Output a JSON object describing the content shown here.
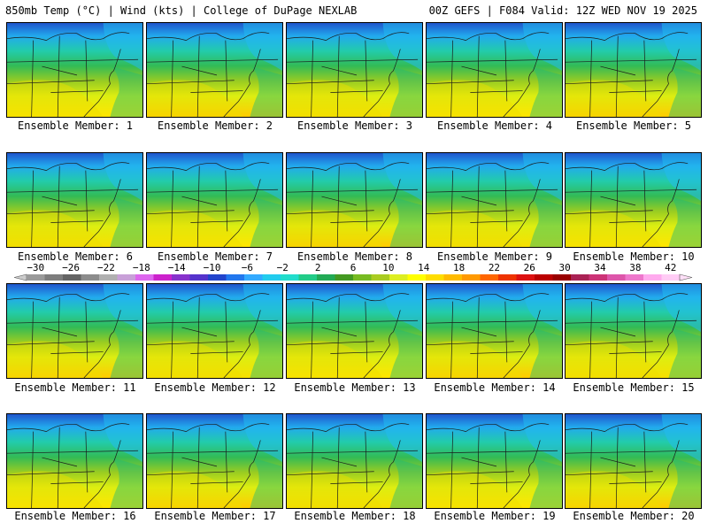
{
  "header": {
    "title_left": "850mb Temp (°C) | Wind (kts) | College of DuPage NEXLAB",
    "title_right": "00Z GEFS | F084 Valid: 12Z WED NOV 19 2025"
  },
  "member_label_prefix": "Ensemble Member:",
  "members": [
    {
      "number": "1"
    },
    {
      "number": "2"
    },
    {
      "number": "3"
    },
    {
      "number": "4"
    },
    {
      "number": "5"
    },
    {
      "number": "6"
    },
    {
      "number": "7"
    },
    {
      "number": "8"
    },
    {
      "number": "9"
    },
    {
      "number": "10"
    },
    {
      "number": "11"
    },
    {
      "number": "12"
    },
    {
      "number": "13"
    },
    {
      "number": "14"
    },
    {
      "number": "15"
    },
    {
      "number": "16"
    },
    {
      "number": "17"
    },
    {
      "number": "18"
    },
    {
      "number": "19"
    },
    {
      "number": "20"
    }
  ],
  "colorbar": {
    "tick_labels": [
      "−30",
      "−26",
      "−22",
      "−18",
      "−14",
      "−10",
      "−6",
      "−2",
      "2",
      "6",
      "10",
      "14",
      "18",
      "22",
      "26",
      "30",
      "34",
      "38",
      "42"
    ],
    "colors": [
      "#9a9a9a",
      "#7d7d7d",
      "#646464",
      "#8c8c8c",
      "#b0b0b0",
      "#c8a0d8",
      "#dd66ee",
      "#cc22cc",
      "#8833cc",
      "#5533cc",
      "#2244cc",
      "#2277ee",
      "#33aaff",
      "#22ccee",
      "#22ddcc",
      "#22cc88",
      "#22aa55",
      "#449922",
      "#77bb22",
      "#aacc22",
      "#ddee22",
      "#ffff00",
      "#ffdd00",
      "#ffbb00",
      "#ff9900",
      "#ff6600",
      "#ee3300",
      "#dd1111",
      "#bb0000",
      "#990000",
      "#aa2255",
      "#cc3377",
      "#dd55aa",
      "#ee77cc",
      "#ffaaee",
      "#ffccf5"
    ]
  }
}
